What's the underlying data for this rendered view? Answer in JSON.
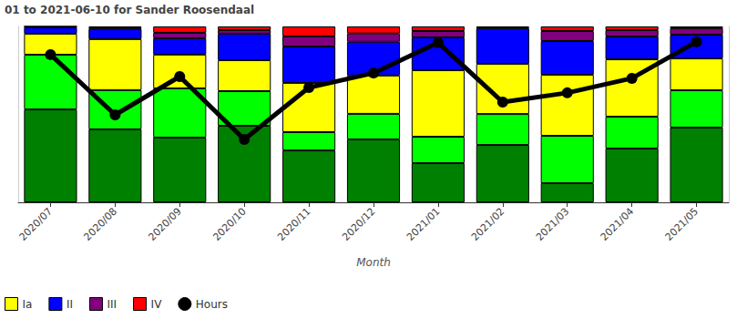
{
  "chart_data": {
    "type": "bar",
    "title": "01 to 2021-06-10 for Sander Roosendaal",
    "x_label": "Month",
    "categories": [
      "2020/07",
      "2020/08",
      "2020/09",
      "2020/10",
      "2020/11",
      "2020/12",
      "2021/01",
      "2021/02",
      "2021/03",
      "2021/04",
      "2021/05"
    ],
    "stacked": true,
    "tick_labels": "x",
    "grid": false,
    "legend": "bottom-left",
    "ylim": [
      0,
      100
    ],
    "y2lim": [
      0,
      40
    ],
    "series": [
      {
        "color": "#008000",
        "values": [
          52.8,
          41.5,
          36.8,
          43.5,
          29.5,
          35.8,
          22.3,
          32.6,
          10.9,
          30.6,
          42.5
        ]
      },
      {
        "color": "#00ff00",
        "values": [
          31.1,
          22.3,
          28.0,
          19.7,
          10.4,
          14.5,
          15.0,
          17.6,
          26.9,
          18.1,
          21.2
        ]
      },
      {
        "name": "Ia",
        "color": "#ffff00",
        "values": [
          11.9,
          29.0,
          19.2,
          17.6,
          28.0,
          21.8,
          37.8,
          28.5,
          34.7,
          32.6,
          18.1
        ]
      },
      {
        "name": "II",
        "color": "#0000ff",
        "values": [
          3.7,
          5.7,
          9.3,
          15.0,
          20.7,
          19.2,
          18.7,
          20.2,
          19.2,
          13.0,
          13.5
        ]
      },
      {
        "name": "III",
        "color": "#800080",
        "values": [
          0.5,
          1.0,
          3.1,
          2.1,
          5.7,
          4.7,
          3.6,
          0.6,
          5.7,
          3.6,
          3.6
        ]
      },
      {
        "name": "IV",
        "color": "#ff0000",
        "values": [
          0,
          0.5,
          3.6,
          2.1,
          5.7,
          4.0,
          2.6,
          0.5,
          2.6,
          2.1,
          1.1
        ]
      },
      {
        "name": "Hours",
        "type": "line",
        "axis": "y2",
        "marker": "circle",
        "color": "#000000",
        "values": [
          33.6,
          19.9,
          28.6,
          14.3,
          26.1,
          29.4,
          36.3,
          22.8,
          24.9,
          28.2,
          36.5
        ]
      }
    ]
  }
}
